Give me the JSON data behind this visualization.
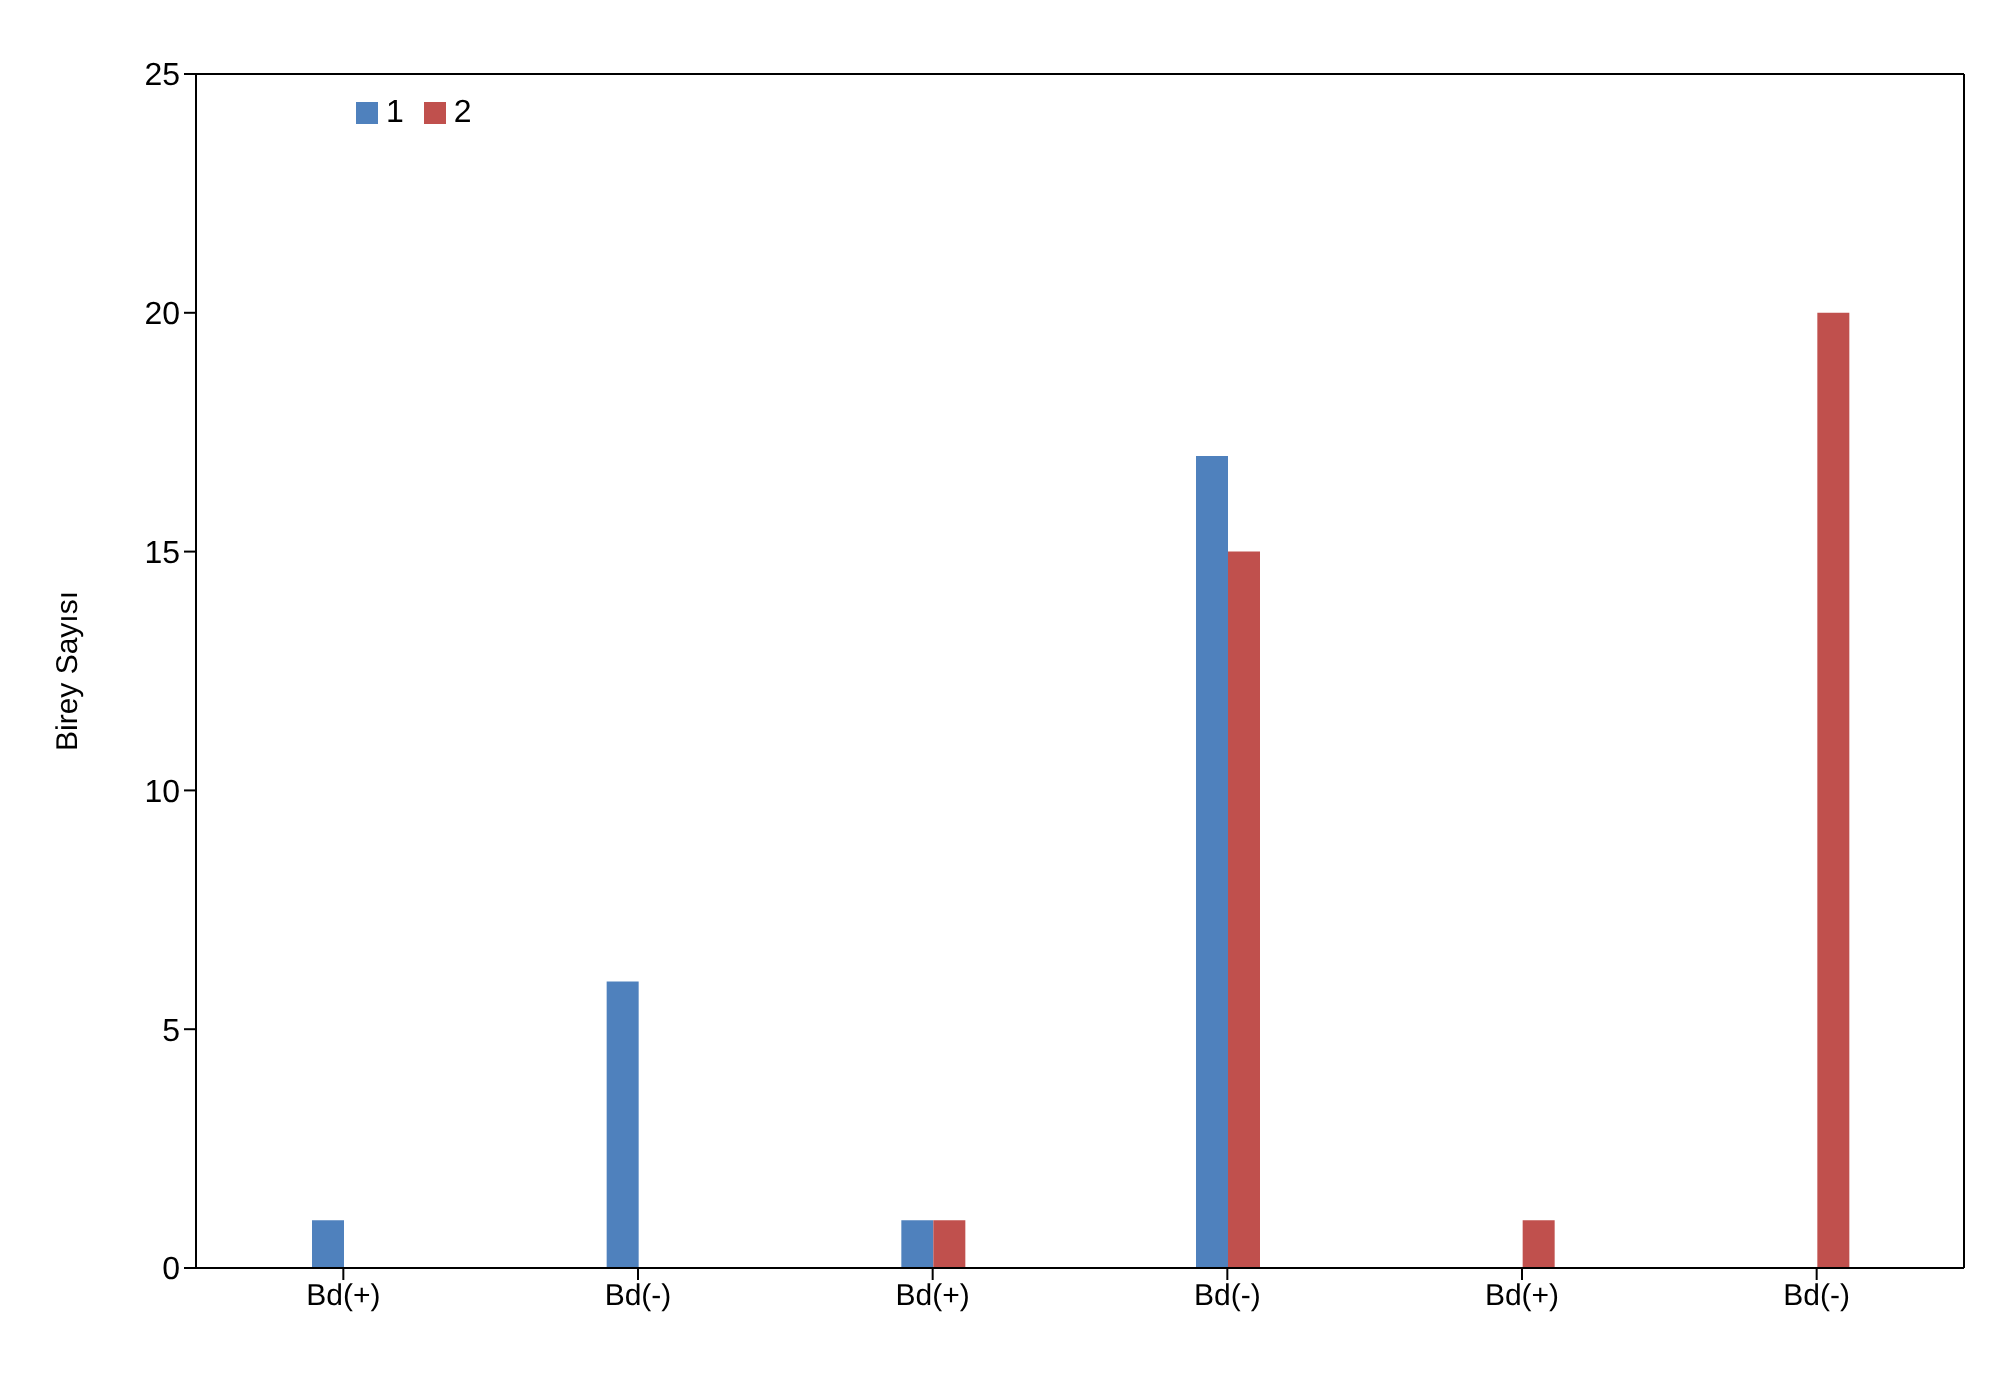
{
  "chart_data": {
    "type": "bar",
    "ylabel": "Birey Sayısı",
    "categories": [
      "Bd(+)",
      "Bd(-)",
      "Bd(+)",
      "Bd(-)",
      "Bd(+)",
      "Bd(-)"
    ],
    "series": [
      {
        "name": "1",
        "color": "#4f81bd",
        "values": [
          1,
          6,
          1,
          17,
          0,
          0
        ]
      },
      {
        "name": "2",
        "color": "#c0504d",
        "values": [
          0,
          0,
          1,
          15,
          1,
          20
        ]
      }
    ],
    "ylim": [
      0,
      25
    ],
    "yticks": [
      0,
      5,
      10,
      15,
      20,
      25
    ],
    "grid": false,
    "legend": "top left"
  }
}
